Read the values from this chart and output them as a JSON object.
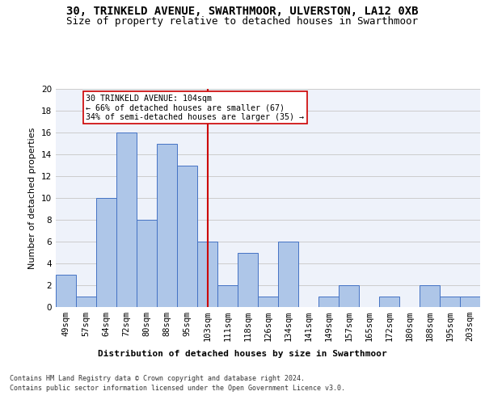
{
  "title_line1": "30, TRINKELD AVENUE, SWARTHMOOR, ULVERSTON, LA12 0XB",
  "title_line2": "Size of property relative to detached houses in Swarthmoor",
  "xlabel_bottom": "Distribution of detached houses by size in Swarthmoor",
  "ylabel": "Number of detached properties",
  "footer_line1": "Contains HM Land Registry data © Crown copyright and database right 2024.",
  "footer_line2": "Contains public sector information licensed under the Open Government Licence v3.0.",
  "categories": [
    "49sqm",
    "57sqm",
    "64sqm",
    "72sqm",
    "80sqm",
    "88sqm",
    "95sqm",
    "103sqm",
    "111sqm",
    "118sqm",
    "126sqm",
    "134sqm",
    "141sqm",
    "149sqm",
    "157sqm",
    "165sqm",
    "172sqm",
    "180sqm",
    "188sqm",
    "195sqm",
    "203sqm"
  ],
  "values": [
    3,
    1,
    10,
    16,
    8,
    15,
    13,
    6,
    2,
    5,
    1,
    6,
    0,
    1,
    2,
    0,
    1,
    0,
    2,
    1,
    1
  ],
  "bar_color": "#aec6e8",
  "bar_edge_color": "#4472c4",
  "vline_x": 7,
  "vline_color": "#cc0000",
  "annotation_text": "30 TRINKELD AVENUE: 104sqm\n← 66% of detached houses are smaller (67)\n34% of semi-detached houses are larger (35) →",
  "annotation_box_color": "#ffffff",
  "annotation_box_edge_color": "#cc0000",
  "ylim": [
    0,
    20
  ],
  "yticks": [
    0,
    2,
    4,
    6,
    8,
    10,
    12,
    14,
    16,
    18,
    20
  ],
  "grid_color": "#cccccc",
  "bg_color": "#eef2fa",
  "title_fontsize": 10,
  "subtitle_fontsize": 9,
  "axis_label_fontsize": 8,
  "tick_fontsize": 7.5,
  "footer_fontsize": 6.0
}
